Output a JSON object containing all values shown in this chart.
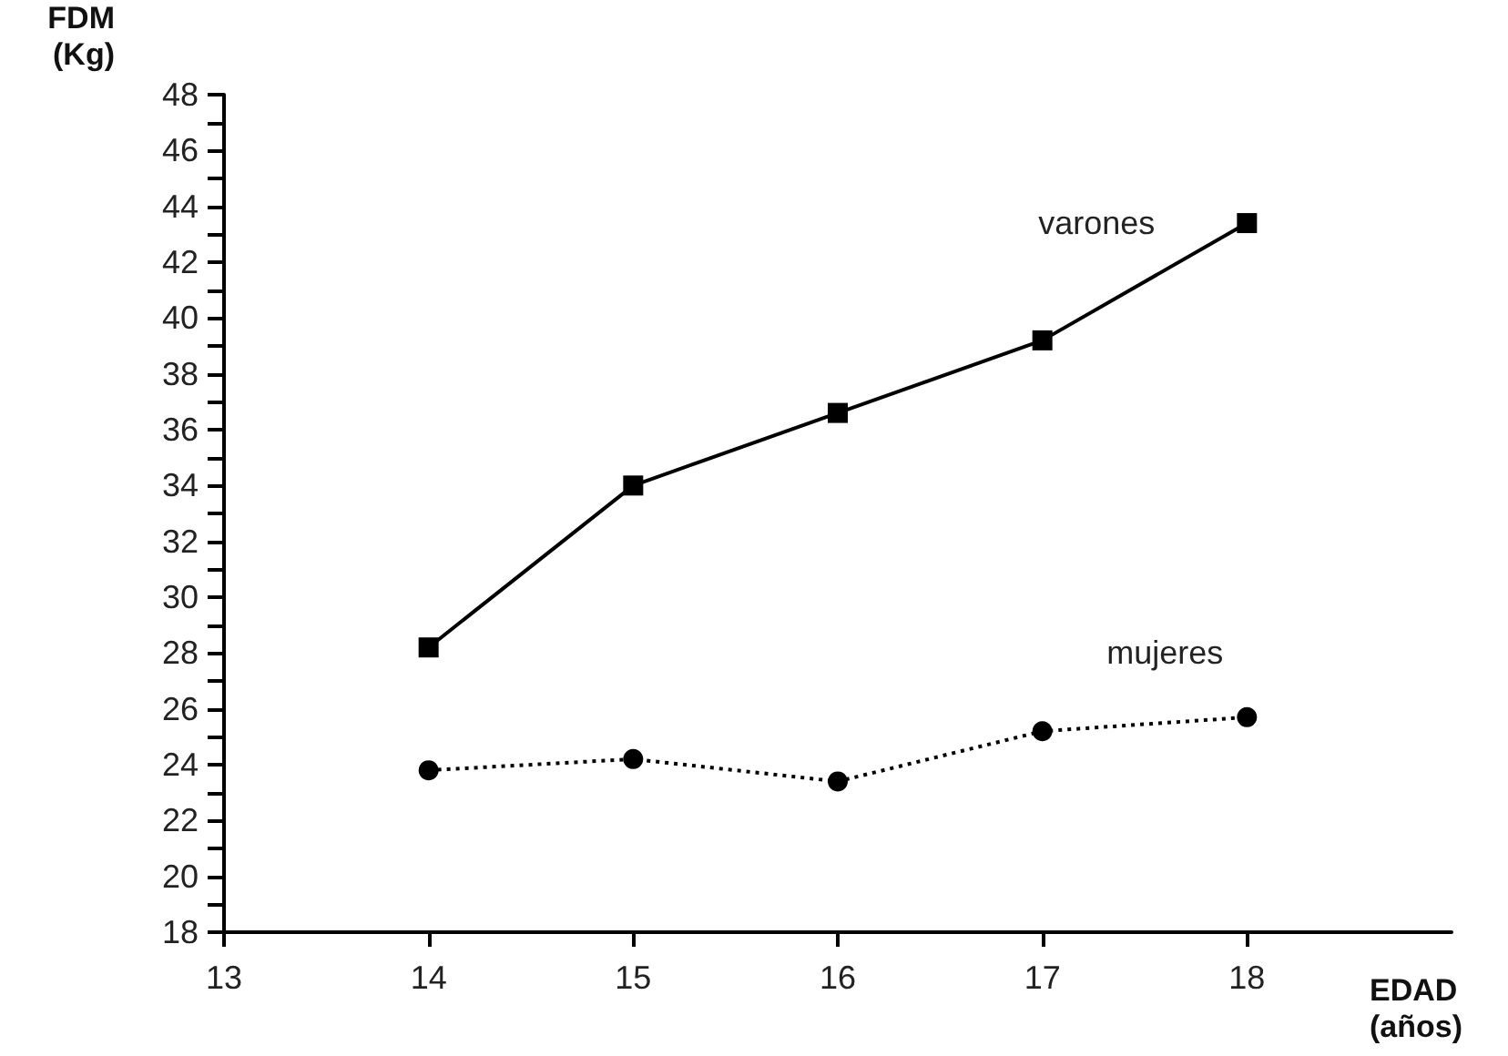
{
  "chart_data": {
    "type": "line",
    "xlabel": "EDAD\n(años)",
    "ylabel": "FDM\n(Kg)",
    "x": [
      14,
      15,
      16,
      17,
      18
    ],
    "series": [
      {
        "name": "varones",
        "color": "#000000",
        "marker": "square",
        "line_style": "solid",
        "values": [
          28.2,
          34.0,
          36.6,
          39.2,
          43.4
        ]
      },
      {
        "name": "mujeres",
        "color": "#000000",
        "marker": "circle",
        "line_style": "dotted",
        "values": [
          23.8,
          24.2,
          23.4,
          25.2,
          25.7
        ]
      }
    ],
    "xlim": [
      13,
      19
    ],
    "xticks": [
      13,
      14,
      15,
      16,
      17,
      18
    ],
    "ylim": [
      18,
      48
    ],
    "yticks": [
      18,
      {
        "value": 19,
        "label": null
      },
      20,
      {
        "value": 21,
        "label": null
      },
      22,
      {
        "value": 23,
        "label": null
      },
      24,
      {
        "value": 25,
        "label": null
      },
      26,
      {
        "value": 27,
        "label": null
      },
      28,
      {
        "value": 29,
        "label": null
      },
      30,
      {
        "value": 31,
        "label": null
      },
      32,
      {
        "value": 33,
        "label": null
      },
      34,
      {
        "value": 35,
        "label": null
      },
      36,
      {
        "value": 37,
        "label": null
      },
      38,
      {
        "value": 39,
        "label": null
      },
      40,
      {
        "value": 41,
        "label": null
      },
      42,
      {
        "value": 43,
        "label": null
      },
      44,
      {
        "value": 45,
        "label": null
      },
      46,
      {
        "value": 47,
        "label": null
      },
      48
    ],
    "grid": false,
    "legend": false
  }
}
